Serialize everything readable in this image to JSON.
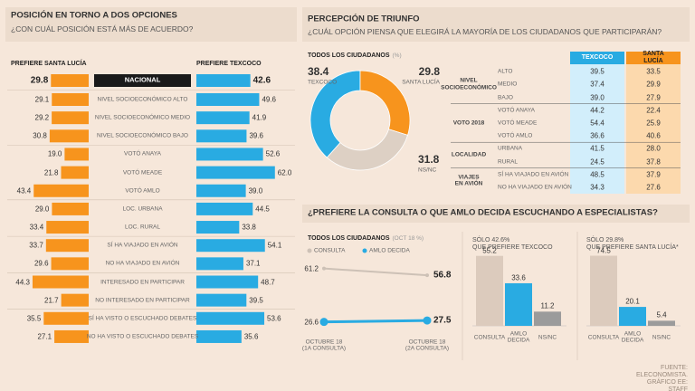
{
  "chart_data": [
    {
      "type": "diverging-bar",
      "title": "POSICIÓN EN TORNO A DOS OPCIONES",
      "subtitle": "¿CON CUÁL POSICIÓN ESTÁ MÁS DE ACUERDO?",
      "categories": [
        "NACIONAL",
        "NIVEL SOCIOECONÓMICO ALTO",
        "NIVEL SOCIOECONÓMICO MEDIO",
        "NIVEL SOCIOECONÓMICO BAJO",
        "VOTÓ ANAYA",
        "VOTÓ MEADE",
        "VOTÓ AMLO",
        "LOC. URBANA",
        "LOC. RURAL",
        "SÍ HA VIAJADO EN AVIÓN",
        "NO HA VIAJADO EN AVIÓN",
        "INTERESADO EN PARTICIPAR",
        "NO INTERESADO EN PARTICIPAR",
        "SÍ HA VISTO O ESCUCHADO DEBATES",
        "NO HA VISTO O ESCUCHADO DEBATES"
      ],
      "series": [
        {
          "name": "PREFIERE SANTA LUCÍA",
          "color": "#f7941d",
          "values": [
            29.8,
            29.1,
            29.2,
            30.8,
            19.0,
            21.8,
            43.4,
            29.0,
            33.4,
            33.7,
            29.6,
            44.3,
            21.7,
            35.5,
            27.1
          ],
          "value_labels": [
            "29.8",
            "29.1",
            "29.2",
            "30.8",
            "19.0",
            "21.8",
            "43.4",
            "29.0",
            "33.4",
            "33.7",
            "29.6",
            "44.3",
            "21.7",
            "35.5",
            "27.1"
          ]
        },
        {
          "name": "PREFIERE TEXCOCO",
          "color": "#29abe2",
          "values": [
            42.6,
            49.6,
            41.9,
            39.6,
            52.6,
            62.0,
            39.0,
            44.5,
            33.8,
            54.1,
            37.1,
            48.7,
            39.5,
            53.6,
            35.6
          ],
          "value_labels": [
            "42.6",
            "49.6",
            "41.9",
            "39.6",
            "52.6",
            "62.0",
            "39.0",
            "44.5",
            "33.8",
            "54.1",
            "37.1",
            "48.7",
            "39.5",
            "53.6",
            "35.6"
          ]
        }
      ]
    },
    {
      "type": "donut",
      "title": "PERCEPCIÓN DE TRIUNFO",
      "subtitle": "¿CUÁL OPCIÓN PIENSA QUE ELEGIRÁ LA MAYORÍA DE LOS CIUDADANOS QUE PARTICIPARÁN?",
      "label": "TODOS LOS CIUDADANOS",
      "label_unit": "(%)",
      "categories": [
        "TEXCOCO",
        "SANTA LUCÍA",
        "NS/NC"
      ],
      "values": [
        38.4,
        29.8,
        31.8
      ],
      "colors": [
        "#29abe2",
        "#f7941d",
        "#ddd0c4"
      ]
    },
    {
      "type": "slope",
      "title": "¿PREFIERE LA CONSULTA O QUE AMLO DECIDA ESCUCHANDO A ESPECIALISTAS?",
      "label": "TODOS LOS CIUDADANOS",
      "label_unit": "(OCT 18 %)",
      "x": [
        "OCTUBRE 18\n(1A CONSULTA)",
        "OCTUBRE 18\n(2A CONSULTA)"
      ],
      "series": [
        {
          "name": "CONSULTA",
          "color": "#cdc1b6",
          "values": [
            61.2,
            56.8
          ]
        },
        {
          "name": "AMLO DECIDA",
          "color": "#29abe2",
          "values": [
            26.6,
            27.5
          ]
        }
      ]
    },
    {
      "type": "bar",
      "title": "SÓLO 42.6%\nQUE PREFIERE TEXCOCO",
      "categories": [
        "CONSULTA",
        "AMLO\nDECIDA",
        "NS/NC"
      ],
      "values": [
        55.2,
        33.6,
        11.2
      ],
      "colors": [
        "#dccbbd",
        "#29abe2",
        "#9b9b9b"
      ]
    },
    {
      "type": "bar",
      "title": "SÓLO 29.8%\nQUE PREFIERE SANTA LUCÍA*",
      "categories": [
        "CONSULTA",
        "AMLO\nDECIDA",
        "NS/NC"
      ],
      "values": [
        74.5,
        20.1,
        5.4
      ],
      "colors": [
        "#dccbbd",
        "#29abe2",
        "#9b9b9b"
      ]
    }
  ],
  "table": {
    "columns": [
      "TEXCOCO",
      "SANTA LUCÍA"
    ],
    "groups": [
      {
        "label": "NIVEL\nSOCIOECONÓMICO",
        "rows": [
          {
            "label": "ALTO",
            "cells": [
              "39.5",
              "33.5"
            ]
          },
          {
            "label": "MEDIO",
            "cells": [
              "37.4",
              "29.9"
            ]
          },
          {
            "label": "BAJO",
            "cells": [
              "39.0",
              "27.9"
            ]
          }
        ]
      },
      {
        "label": "VOTO 2018",
        "rows": [
          {
            "label": "VOTÓ ANAYA",
            "cells": [
              "44.2",
              "22.4"
            ]
          },
          {
            "label": "VOTÓ MEADE",
            "cells": [
              "54.4",
              "25.9"
            ]
          },
          {
            "label": "VOTÓ AMLO",
            "cells": [
              "36.6",
              "40.6"
            ]
          }
        ]
      },
      {
        "label": "LOCALIDAD",
        "rows": [
          {
            "label": "URBANA",
            "cells": [
              "41.5",
              "28.0"
            ]
          },
          {
            "label": "RURAL",
            "cells": [
              "24.5",
              "37.8"
            ]
          }
        ]
      },
      {
        "label": "VIAJES\nEN AVIÓN",
        "rows": [
          {
            "label": "SÍ HA VIAJADO EN AVIÓN",
            "cells": [
              "48.5",
              "37.9"
            ]
          },
          {
            "label": "NO HA VIAJADO EN AVIÓN",
            "cells": [
              "34.3",
              "27.6"
            ]
          }
        ]
      }
    ]
  },
  "source": "FUENTE: ELECONOMISTA. GRÁFICO EE: STAFF"
}
